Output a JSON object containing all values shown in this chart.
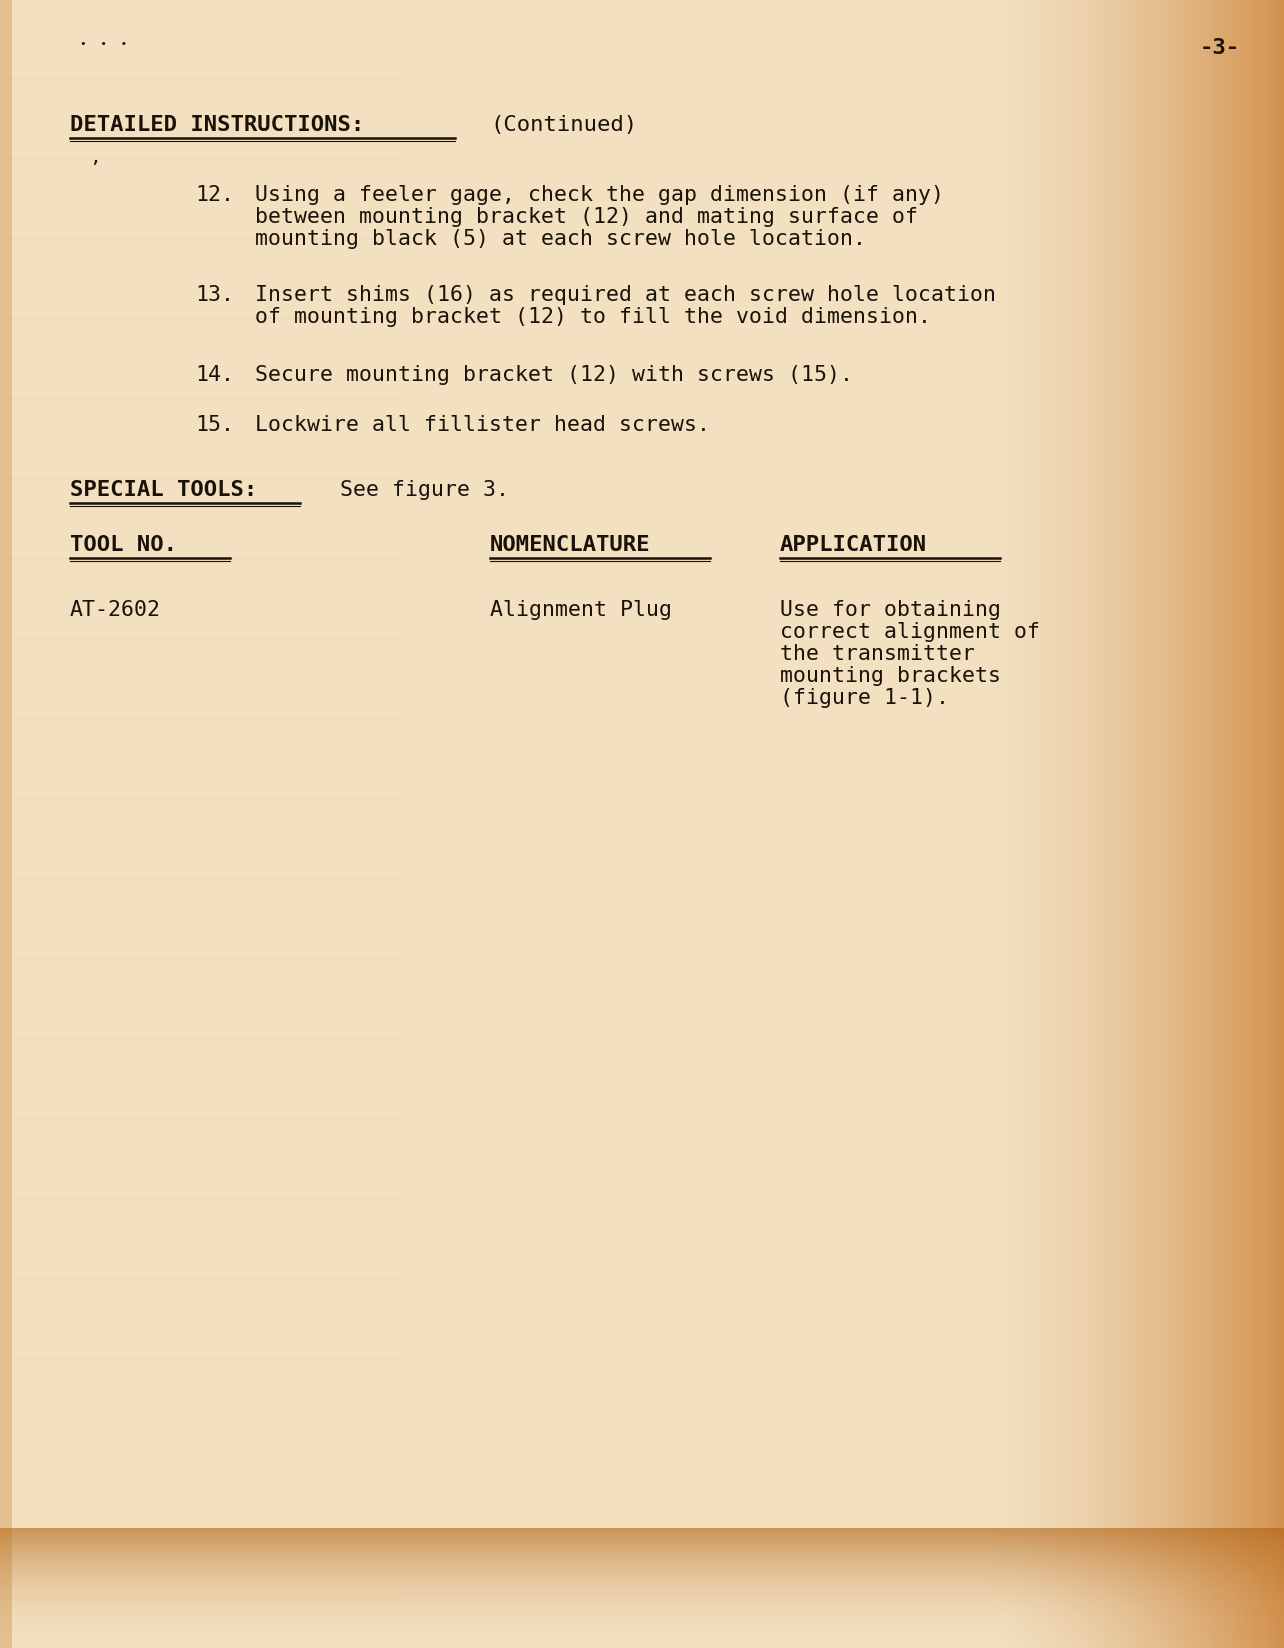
{
  "bg_color_center": "#f2e0c0",
  "bg_color_right": "#d4873a",
  "bg_color_bottom": "#c8793a",
  "text_color": "#1a1208",
  "page_number": "-3-",
  "section_header": "DETAILED INSTRUCTIONS:",
  "section_continued": "(Continued)",
  "items": [
    {
      "number": "12.",
      "text_lines": [
        "Using a feeler gage, check the gap dimension (if any)",
        "between mounting bracket (12) and mating surface of",
        "mounting black (5) at each screw hole location."
      ]
    },
    {
      "number": "13.",
      "text_lines": [
        "Insert shims (16) as required at each screw hole location",
        "of mounting bracket (12) to fill the void dimension."
      ]
    },
    {
      "number": "14.",
      "text_lines": [
        "Secure mounting bracket (12) with screws (15)."
      ]
    },
    {
      "number": "15.",
      "text_lines": [
        "Lockwire all fillister head screws."
      ]
    }
  ],
  "special_tools_header": "SPECIAL TOOLS:",
  "special_tools_text": "See figure 3.",
  "table_headers": [
    "TOOL NO.",
    "NOMENCLATURE",
    "APPLICATION"
  ],
  "table_row_col1": "AT-2602",
  "table_row_col2": "Alignment Plug",
  "table_row_col3_lines": [
    "Use for obtaining",
    "correct alignment of",
    "the transmitter",
    "mounting brackets",
    "(figure 1-1)."
  ]
}
